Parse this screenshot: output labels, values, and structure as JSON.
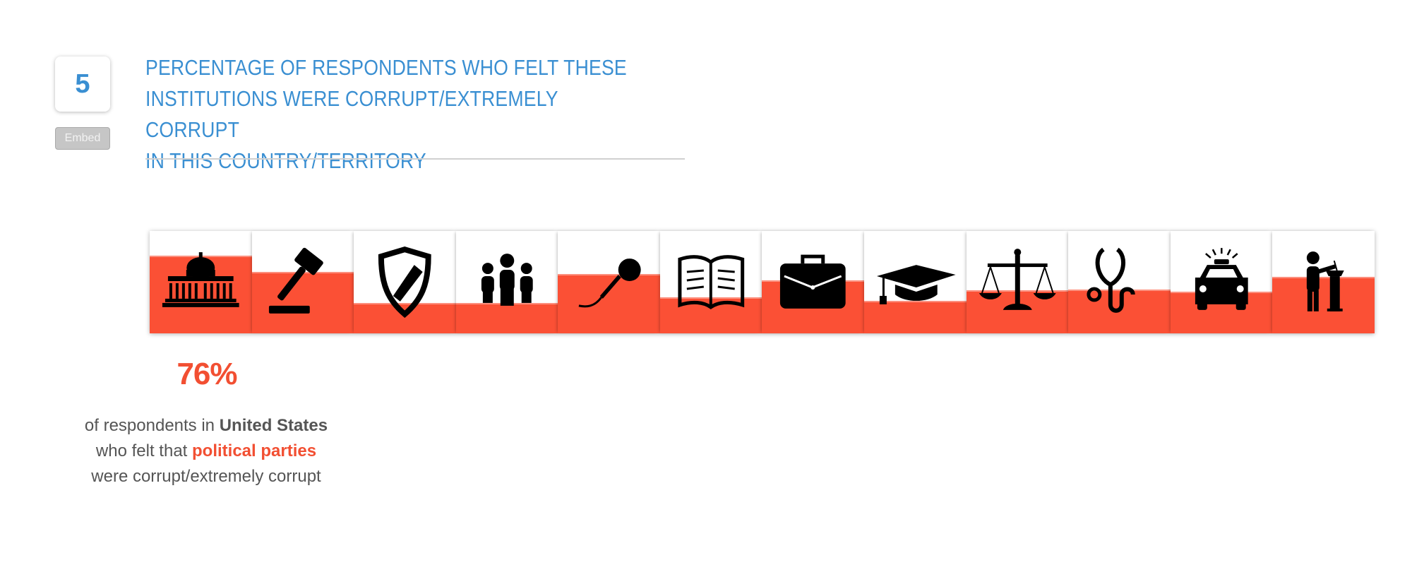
{
  "figure_number": "5",
  "embed_label": "Embed",
  "title_lines": [
    "PERCENTAGE OF RESPONDENTS WHO FELT THESE",
    "INSTITUTIONS WERE CORRUPT/EXTREMELY CORRUPT",
    "IN THIS COUNTRY/TERRITORY"
  ],
  "colors": {
    "accent": "#3a8fd2",
    "fill": "#fb5035",
    "highlight": "#f24f32",
    "text": "#555555"
  },
  "chart_data": {
    "type": "bar",
    "categories": [
      "capitol-building-icon",
      "gavel-icon",
      "shield-icon",
      "people-group-icon",
      "microphone-icon",
      "open-book-icon",
      "briefcase-icon",
      "graduation-cap-icon",
      "scales-icon",
      "stethoscope-icon",
      "police-car-icon",
      "speaker-at-podium-icon"
    ],
    "values": [
      76,
      60,
      30,
      30,
      58,
      35,
      52,
      32,
      42,
      43,
      41,
      55
    ],
    "ylim": [
      0,
      100
    ],
    "selected_index": 0
  },
  "detail": {
    "percent": "76%",
    "line1_prefix": "of respondents in ",
    "country": "United States",
    "line2_prefix": "who felt that ",
    "institution": "political parties",
    "line3": "were corrupt/extremely corrupt"
  }
}
